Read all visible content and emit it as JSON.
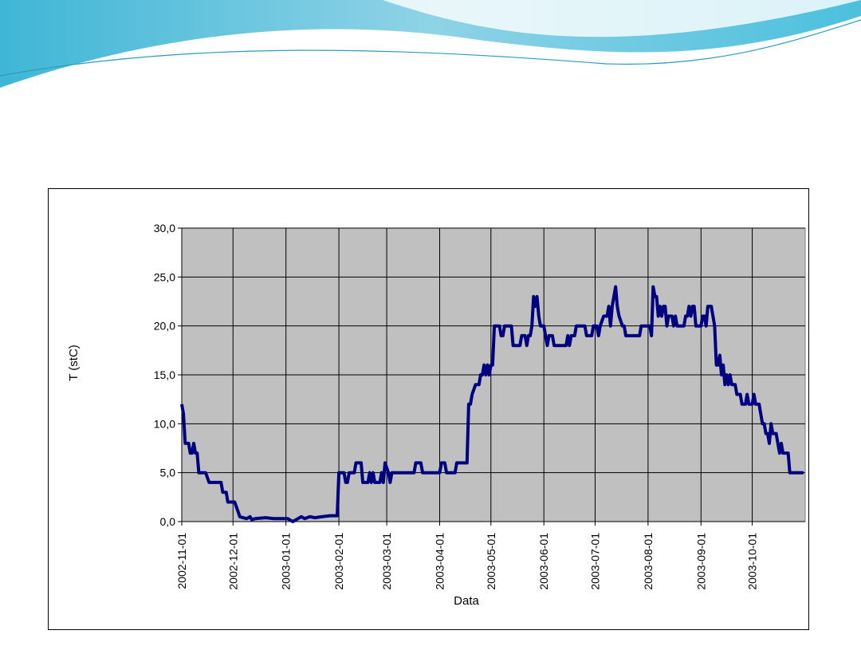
{
  "chart_data": {
    "type": "line",
    "y_label": "T (stC)",
    "x_label": "Data",
    "x": [
      "2002-11-01",
      "2002-11-02",
      "2002-11-03",
      "2002-11-05",
      "2002-11-06",
      "2002-11-07",
      "2002-11-08",
      "2002-11-09",
      "2002-11-10",
      "2002-11-11",
      "2002-11-15",
      "2002-11-17",
      "2002-11-24",
      "2002-11-25",
      "2002-11-27",
      "2002-11-28",
      "2002-12-02",
      "2002-12-04",
      "2002-12-05",
      "2002-12-09",
      "2002-12-11",
      "2002-12-12",
      "2002-12-14",
      "2002-12-20",
      "2002-12-25",
      "2002-12-30",
      "2003-01-02",
      "2003-01-05",
      "2003-01-08",
      "2003-01-10",
      "2003-01-12",
      "2003-01-15",
      "2003-01-18",
      "2003-01-22",
      "2003-01-27",
      "2003-01-31",
      "2003-02-01",
      "2003-02-04",
      "2003-02-05",
      "2003-02-06",
      "2003-02-07",
      "2003-02-10",
      "2003-02-11",
      "2003-02-14",
      "2003-02-15",
      "2003-02-18",
      "2003-02-19",
      "2003-02-20",
      "2003-02-21",
      "2003-02-22",
      "2003-02-25",
      "2003-02-26",
      "2003-02-27",
      "2003-02-28",
      "2003-03-02",
      "2003-03-03",
      "2003-03-04",
      "2003-03-17",
      "2003-03-18",
      "2003-03-21",
      "2003-03-22",
      "2003-04-01",
      "2003-04-02",
      "2003-04-04",
      "2003-04-05",
      "2003-04-10",
      "2003-04-11",
      "2003-04-17",
      "2003-04-18",
      "2003-04-19",
      "2003-04-20",
      "2003-04-22",
      "2003-04-24",
      "2003-04-25",
      "2003-04-26",
      "2003-04-27",
      "2003-04-28",
      "2003-04-29",
      "2003-04-30",
      "2003-05-01",
      "2003-05-02",
      "2003-05-03",
      "2003-05-06",
      "2003-05-07",
      "2003-05-08",
      "2003-05-09",
      "2003-05-13",
      "2003-05-14",
      "2003-05-18",
      "2003-05-19",
      "2003-05-21",
      "2003-05-22",
      "2003-05-23",
      "2003-05-24",
      "2003-05-25",
      "2003-05-26",
      "2003-05-27",
      "2003-05-28",
      "2003-05-29",
      "2003-05-30",
      "2003-06-01",
      "2003-06-02",
      "2003-06-03",
      "2003-06-04",
      "2003-06-06",
      "2003-06-07",
      "2003-06-14",
      "2003-06-15",
      "2003-06-16",
      "2003-06-17",
      "2003-06-19",
      "2003-06-20",
      "2003-06-25",
      "2003-06-26",
      "2003-06-29",
      "2003-06-30",
      "2003-07-02",
      "2003-07-03",
      "2003-07-04",
      "2003-07-06",
      "2003-07-08",
      "2003-07-09",
      "2003-07-10",
      "2003-07-11",
      "2003-07-13",
      "2003-07-14",
      "2003-07-15",
      "2003-07-17",
      "2003-07-18",
      "2003-07-19",
      "2003-07-27",
      "2003-07-28",
      "2003-08-02",
      "2003-08-03",
      "2003-08-04",
      "2003-08-05",
      "2003-08-06",
      "2003-08-07",
      "2003-08-08",
      "2003-08-09",
      "2003-08-10",
      "2003-08-11",
      "2003-08-12",
      "2003-08-13",
      "2003-08-15",
      "2003-08-16",
      "2003-08-17",
      "2003-08-18",
      "2003-08-22",
      "2003-08-23",
      "2003-08-24",
      "2003-08-25",
      "2003-08-26",
      "2003-08-27",
      "2003-08-28",
      "2003-08-29",
      "2003-09-01",
      "2003-09-02",
      "2003-09-03",
      "2003-09-04",
      "2003-09-05",
      "2003-09-07",
      "2003-09-08",
      "2003-09-09",
      "2003-09-10",
      "2003-09-11",
      "2003-09-12",
      "2003-09-13",
      "2003-09-14",
      "2003-09-15",
      "2003-09-16",
      "2003-09-17",
      "2003-09-18",
      "2003-09-19",
      "2003-09-21",
      "2003-09-22",
      "2003-09-24",
      "2003-09-25",
      "2003-09-27",
      "2003-09-28",
      "2003-09-29",
      "2003-10-01",
      "2003-10-02",
      "2003-10-03",
      "2003-10-05",
      "2003-10-06",
      "2003-10-07",
      "2003-10-08",
      "2003-10-09",
      "2003-10-10",
      "2003-10-11",
      "2003-10-12",
      "2003-10-13",
      "2003-10-15",
      "2003-10-16",
      "2003-10-17",
      "2003-10-18",
      "2003-10-19",
      "2003-10-22",
      "2003-10-23",
      "2003-10-31"
    ],
    "series": [
      {
        "color": "#000080",
        "values": [
          12,
          11,
          8,
          8,
          7,
          7,
          8,
          7,
          7,
          5,
          5,
          4,
          4,
          3,
          3,
          2,
          2,
          1,
          0.5,
          0.3,
          0.5,
          0.2,
          0.3,
          0.4,
          0.3,
          0.3,
          0.3,
          0,
          0.3,
          0.5,
          0.3,
          0.5,
          0.4,
          0.5,
          0.6,
          0.6,
          5,
          5,
          4,
          4,
          5,
          5,
          6,
          6,
          4,
          4,
          5,
          4,
          5,
          4,
          4,
          5,
          4,
          6,
          5,
          4,
          5,
          5,
          6,
          6,
          5,
          5,
          6,
          6,
          5,
          5,
          6,
          6,
          12,
          12,
          13,
          14,
          14,
          15,
          15,
          16,
          15,
          16,
          15,
          16,
          16,
          20,
          20,
          19,
          19,
          20,
          20,
          18,
          18,
          19,
          19,
          18,
          19,
          19,
          20,
          23,
          22,
          23,
          21,
          20,
          20,
          19,
          18,
          19,
          19,
          18,
          18,
          19,
          18,
          19,
          19,
          20,
          20,
          19,
          19,
          20,
          20,
          19,
          20,
          21,
          21,
          22,
          20,
          22,
          24,
          22,
          21,
          20,
          20,
          19,
          19,
          20,
          20,
          19,
          24,
          23,
          23,
          21,
          22,
          21,
          22,
          22,
          20,
          21,
          21,
          20,
          21,
          20,
          20,
          21,
          21,
          22,
          21,
          22,
          22,
          20,
          20,
          21,
          21,
          20,
          22,
          22,
          21,
          20,
          16,
          16,
          17,
          15,
          16,
          14,
          15,
          14,
          15,
          14,
          14,
          13,
          13,
          12,
          12,
          13,
          12,
          12,
          13,
          12,
          12,
          11,
          10,
          10,
          9,
          9,
          8,
          10,
          9,
          9,
          8,
          7,
          8,
          7,
          7,
          5,
          5
        ]
      }
    ],
    "xlim": [
      "2002-11-01",
      "2003-11-01"
    ],
    "xticks": [
      "2002-11-01",
      "2002-12-01",
      "2003-01-01",
      "2003-02-01",
      "2003-03-01",
      "2003-04-01",
      "2003-05-01",
      "2003-06-01",
      "2003-07-01",
      "2003-08-01",
      "2003-09-01",
      "2003-10-01"
    ],
    "ylim": [
      0,
      30
    ],
    "yticks": [
      {
        "value": 0,
        "label": "0,0"
      },
      {
        "value": 5,
        "label": "5,0"
      },
      {
        "value": 10,
        "label": "10,0"
      },
      {
        "value": 15,
        "label": "15,0"
      },
      {
        "value": 20,
        "label": "20,0"
      },
      {
        "value": 25,
        "label": "25,0"
      },
      {
        "value": 30,
        "label": "30,0"
      }
    ],
    "grid": true,
    "plot_background": "#c0c0c0"
  }
}
